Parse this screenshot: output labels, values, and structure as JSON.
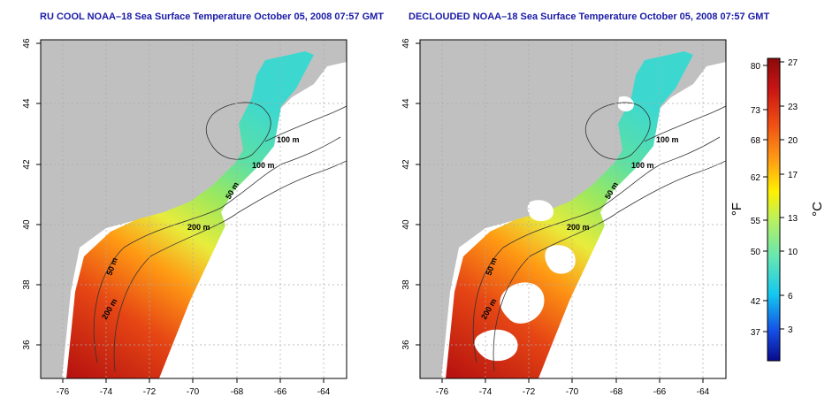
{
  "panels": [
    {
      "title": "RU COOL NOAA–18 Sea Surface Temperature October 05, 2008 07:57 GMT",
      "x_ticks": [
        "-76",
        "-74",
        "-72",
        "-70",
        "-68",
        "-66",
        "-64"
      ],
      "y_ticks": [
        "36",
        "38",
        "40",
        "42",
        "44",
        "46"
      ],
      "contour_labels": [
        "100 m",
        "100 m",
        "50 m",
        "200 m",
        "50 m",
        "200 m"
      ]
    },
    {
      "title": "DECLOUDED NOAA–18 Sea Surface Temperature October 05, 2008 07:57 GMT",
      "x_ticks": [
        "-76",
        "-74",
        "-72",
        "-70",
        "-68",
        "-66",
        "-64"
      ],
      "y_ticks": [
        "36",
        "38",
        "40",
        "42",
        "44",
        "46"
      ],
      "contour_labels": [
        "100 m",
        "100 m",
        "50 m",
        "200 m",
        "50 m",
        "200 m"
      ]
    }
  ],
  "colorbar": {
    "fahrenheit_label": "°F",
    "celsius_label": "°C",
    "fahrenheit_ticks": [
      "80",
      "73",
      "68",
      "62",
      "55",
      "50",
      "42",
      "37"
    ],
    "celsius_ticks": [
      "27",
      "23",
      "20",
      "17",
      "13",
      "10",
      "6",
      "3"
    ],
    "colors": [
      "#0a0a8c",
      "#1450e6",
      "#14c8f0",
      "#64e6b4",
      "#b4f064",
      "#fff000",
      "#ffa014",
      "#f05014",
      "#c81414",
      "#8c0a0a"
    ]
  },
  "colors": {
    "land": "#c0c0c0",
    "ocean_bg": "#ffffff",
    "title": "#1a1aa8"
  }
}
